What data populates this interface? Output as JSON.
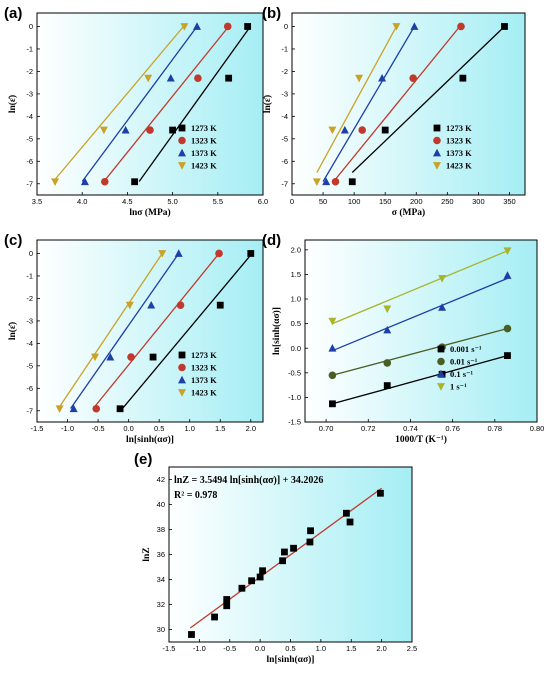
{
  "chart_data": [
    {
      "id": "a",
      "panel_label": "(a)",
      "type": "scatter",
      "xlabel": "lnσ (MPa)",
      "ylabel": "ln(ε̇)",
      "xlim": [
        3.5,
        6.0
      ],
      "ylim": [
        -7.5,
        0.6
      ],
      "xticks": [
        "3.5",
        "4.0",
        "4.5",
        "5.0",
        "5.5",
        "6.0"
      ],
      "yticks": [
        "0",
        "-1",
        "-2",
        "-3",
        "-4",
        "-5",
        "-6",
        "-7"
      ],
      "legend_position": "bottom-right",
      "series": [
        {
          "name": "1273 K",
          "color": "#000000",
          "marker": "square",
          "points": [
            [
              4.58,
              -6.91
            ],
            [
              5.0,
              -4.61
            ],
            [
              5.62,
              -2.3
            ],
            [
              5.83,
              0.0
            ]
          ],
          "fit": [
            [
              4.63,
              -6.9
            ],
            [
              5.86,
              0.0
            ]
          ]
        },
        {
          "name": "1323 K",
          "color": "#c0392b",
          "marker": "circle",
          "points": [
            [
              4.25,
              -6.91
            ],
            [
              4.75,
              -4.61
            ],
            [
              5.28,
              -2.3
            ],
            [
              5.61,
              0.0
            ]
          ],
          "fit": [
            [
              4.24,
              -6.9
            ],
            [
              5.62,
              0.0
            ]
          ]
        },
        {
          "name": "1373 K",
          "color": "#1c3fa8",
          "marker": "triangle-up",
          "points": [
            [
              4.03,
              -6.91
            ],
            [
              4.48,
              -4.61
            ],
            [
              4.98,
              -2.3
            ],
            [
              5.27,
              0.0
            ]
          ],
          "fit": [
            [
              4.0,
              -6.9
            ],
            [
              5.27,
              0.0
            ]
          ]
        },
        {
          "name": "1423 K",
          "color": "#c9a227",
          "marker": "triangle-down",
          "points": [
            [
              3.7,
              -6.91
            ],
            [
              4.24,
              -4.61
            ],
            [
              4.73,
              -2.3
            ],
            [
              5.13,
              0.0
            ]
          ],
          "fit": [
            [
              3.68,
              -6.9
            ],
            [
              5.12,
              0.0
            ]
          ]
        }
      ]
    },
    {
      "id": "b",
      "panel_label": "(b)",
      "type": "scatter",
      "xlabel": "σ (MPa)",
      "ylabel": "ln(ε̇)",
      "xlim": [
        0,
        375
      ],
      "ylim": [
        -7.5,
        0.6
      ],
      "xticks": [
        "0",
        "50",
        "100",
        "150",
        "200",
        "250",
        "300",
        "350"
      ],
      "yticks": [
        "0",
        "-1",
        "-2",
        "-3",
        "-4",
        "-5",
        "-6",
        "-7"
      ],
      "legend_position": "bottom-right",
      "series": [
        {
          "name": "1273 K",
          "color": "#000000",
          "marker": "square",
          "points": [
            [
              97,
              -6.91
            ],
            [
              150,
              -4.61
            ],
            [
              275,
              -2.3
            ],
            [
              342,
              0.0
            ]
          ],
          "fit": [
            [
              97,
              -6.5
            ],
            [
              342,
              0.0
            ]
          ]
        },
        {
          "name": "1323 K",
          "color": "#c0392b",
          "marker": "circle",
          "points": [
            [
              70,
              -6.91
            ],
            [
              113,
              -4.61
            ],
            [
              195,
              -2.3
            ],
            [
              272,
              0.0
            ]
          ],
          "fit": [
            [
              67,
              -6.9
            ],
            [
              270,
              0.0
            ]
          ]
        },
        {
          "name": "1373 K",
          "color": "#1c3fa8",
          "marker": "triangle-up",
          "points": [
            [
              55,
              -6.91
            ],
            [
              85,
              -4.61
            ],
            [
              145,
              -2.3
            ],
            [
              197,
              0.0
            ]
          ],
          "fit": [
            [
              50,
              -6.9
            ],
            [
              197,
              0.0
            ]
          ]
        },
        {
          "name": "1423 K",
          "color": "#c9a227",
          "marker": "triangle-down",
          "points": [
            [
              40,
              -6.91
            ],
            [
              65,
              -4.61
            ],
            [
              108,
              -2.3
            ],
            [
              168,
              0.0
            ]
          ],
          "fit": [
            [
              40,
              -6.5
            ],
            [
              168,
              0.0
            ]
          ]
        }
      ]
    },
    {
      "id": "c",
      "panel_label": "(c)",
      "type": "scatter",
      "xlabel": "ln[sinh(ασ)]",
      "ylabel": "ln(ε̇)",
      "xlim": [
        -1.5,
        2.2
      ],
      "ylim": [
        -7.5,
        0.6
      ],
      "xticks": [
        "-1.5",
        "-1.0",
        "-0.5",
        "0.0",
        "0.5",
        "1.0",
        "1.5",
        "2.0"
      ],
      "yticks": [
        "0",
        "-1",
        "-2",
        "-3",
        "-4",
        "-5",
        "-6",
        "-7"
      ],
      "legend_position": "bottom-right",
      "series": [
        {
          "name": "1273 K",
          "color": "#000000",
          "marker": "square",
          "points": [
            [
              -0.14,
              -6.91
            ],
            [
              0.4,
              -4.61
            ],
            [
              1.5,
              -2.3
            ],
            [
              2.0,
              0.0
            ]
          ],
          "fit": [
            [
              -0.1,
              -6.9
            ],
            [
              2.02,
              0.0
            ]
          ]
        },
        {
          "name": "1323 K",
          "color": "#c0392b",
          "marker": "circle",
          "points": [
            [
              -0.53,
              -6.91
            ],
            [
              0.04,
              -4.61
            ],
            [
              0.85,
              -2.3
            ],
            [
              1.48,
              0.0
            ]
          ],
          "fit": [
            [
              -0.58,
              -6.9
            ],
            [
              1.48,
              0.0
            ]
          ]
        },
        {
          "name": "1373 K",
          "color": "#1c3fa8",
          "marker": "triangle-up",
          "points": [
            [
              -0.9,
              -6.91
            ],
            [
              -0.3,
              -4.61
            ],
            [
              0.37,
              -2.3
            ],
            [
              0.82,
              0.0
            ]
          ],
          "fit": [
            [
              -0.95,
              -6.9
            ],
            [
              0.82,
              0.0
            ]
          ]
        },
        {
          "name": "1423 K",
          "color": "#c9a227",
          "marker": "triangle-down",
          "points": [
            [
              -1.13,
              -6.91
            ],
            [
              -0.55,
              -4.61
            ],
            [
              0.02,
              -2.3
            ],
            [
              0.55,
              0.0
            ]
          ],
          "fit": [
            [
              -1.15,
              -6.9
            ],
            [
              0.55,
              0.0
            ]
          ]
        }
      ]
    },
    {
      "id": "d",
      "panel_label": "(d)",
      "type": "scatter",
      "xlabel": "1000/T (K⁻¹)",
      "ylabel": "ln[sinh(ασ)]",
      "xlim": [
        0.69,
        0.8
      ],
      "ylim": [
        -1.5,
        2.2
      ],
      "xticks": [
        "0.70",
        "0.72",
        "0.74",
        "0.76",
        "0.78",
        "0.80"
      ],
      "yticks": [
        "2.0",
        "1.5",
        "1.0",
        "0.5",
        "0.0",
        "-0.5",
        "-1.0",
        "-1.5"
      ],
      "legend_position": "bottom-right",
      "series": [
        {
          "name": "0.001 s⁻¹",
          "color": "#000000",
          "marker": "square",
          "points": [
            [
              0.703,
              -1.13
            ],
            [
              0.729,
              -0.76
            ],
            [
              0.755,
              -0.53
            ],
            [
              0.786,
              -0.15
            ]
          ],
          "fit": [
            [
              0.703,
              -1.13
            ],
            [
              0.786,
              -0.15
            ]
          ]
        },
        {
          "name": "0.01 s⁻¹",
          "color": "#4a5d23",
          "marker": "circle",
          "points": [
            [
              0.703,
              -0.55
            ],
            [
              0.729,
              -0.3
            ],
            [
              0.755,
              0.02
            ],
            [
              0.786,
              0.4
            ]
          ],
          "fit": [
            [
              0.703,
              -0.55
            ],
            [
              0.786,
              0.4
            ]
          ]
        },
        {
          "name": "0.1 s⁻¹",
          "color": "#1c3fa8",
          "marker": "triangle-up",
          "points": [
            [
              0.703,
              0.0
            ],
            [
              0.729,
              0.37
            ],
            [
              0.755,
              0.83
            ],
            [
              0.786,
              1.48
            ]
          ],
          "fit": [
            [
              0.703,
              -0.05
            ],
            [
              0.786,
              1.42
            ]
          ]
        },
        {
          "name": "1 s⁻¹",
          "color": "#a8b52a",
          "marker": "triangle-down",
          "points": [
            [
              0.703,
              0.55
            ],
            [
              0.729,
              0.8
            ],
            [
              0.755,
              1.42
            ],
            [
              0.786,
              1.98
            ]
          ],
          "fit": [
            [
              0.703,
              0.5
            ],
            [
              0.786,
              1.98
            ]
          ]
        }
      ]
    },
    {
      "id": "e",
      "panel_label": "(e)",
      "type": "scatter",
      "xlabel": "ln[sinh(ασ)]",
      "ylabel": "lnZ",
      "xlim": [
        -1.5,
        2.5
      ],
      "ylim": [
        29,
        43
      ],
      "xticks": [
        "-1.5",
        "-1.0",
        "-0.5",
        "0.0",
        "0.5",
        "1.0",
        "1.5",
        "2.0",
        "2.5"
      ],
      "yticks": [
        "30",
        "32",
        "34",
        "36",
        "38",
        "40",
        "42"
      ],
      "annotation_lines": [
        "lnZ = 3.5494 ln[sinh(ασ)] + 34.2026",
        "R² = 0.978"
      ],
      "series": [
        {
          "name": "",
          "color": "#000000",
          "marker": "square",
          "fit_color": "#c0392b",
          "points": [
            [
              -1.13,
              29.6
            ],
            [
              -0.75,
              31.0
            ],
            [
              -0.55,
              31.9
            ],
            [
              -0.55,
              32.4
            ],
            [
              -0.3,
              33.3
            ],
            [
              -0.14,
              33.9
            ],
            [
              0.0,
              34.2
            ],
            [
              0.04,
              34.7
            ],
            [
              0.37,
              35.5
            ],
            [
              0.4,
              36.2
            ],
            [
              0.55,
              36.5
            ],
            [
              0.82,
              37.0
            ],
            [
              0.83,
              37.9
            ],
            [
              1.42,
              39.3
            ],
            [
              1.48,
              38.6
            ],
            [
              1.98,
              40.9
            ]
          ],
          "fit": [
            [
              -1.15,
              30.12
            ],
            [
              2.0,
              41.3
            ]
          ]
        }
      ]
    }
  ]
}
